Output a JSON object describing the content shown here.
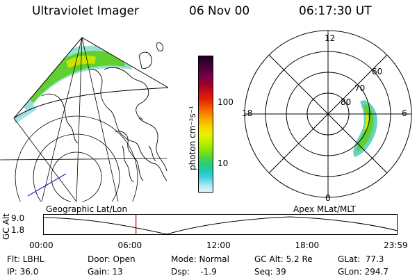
{
  "header": {
    "title": "Ultraviolet Imager",
    "date": "06 Nov 00",
    "time": "06:17:30 UT"
  },
  "colorbar": {
    "label": "photon cm⁻²s⁻¹",
    "ticks": [
      "100",
      "10"
    ],
    "colors": [
      "#1a0022",
      "#3a0033",
      "#5a0040",
      "#7a0048",
      "#a0002a",
      "#c81018",
      "#e02000",
      "#f05000",
      "#f88000",
      "#f8b000",
      "#f8d800",
      "#e8f000",
      "#c0f000",
      "#90e800",
      "#58d830",
      "#28d070",
      "#20c8b0",
      "#40d0e0",
      "#a0e8f0",
      "#e8f4f8"
    ]
  },
  "polar": {
    "labels": {
      "top": "12",
      "right": "6",
      "bottom": "0",
      "left": "18",
      "lat60": "60",
      "lat70": "70",
      "lat80": "80"
    }
  },
  "timeline": {
    "y_title": "GC Alt",
    "y_top": "9.0",
    "y_bottom": "1.8",
    "left_label": "Geographic Lat/Lon",
    "right_label": "Apex MLat/MLT",
    "x_ticks": [
      "00:00",
      "06:00",
      "12:00",
      "18:00",
      "23:59"
    ],
    "current_time_hours": 6.29,
    "line_color": "#c00000"
  },
  "info": {
    "row1": [
      "Flt: LBHL",
      "Door: Open",
      "Mode: Normal",
      "GC Alt: 5.2 Re",
      "GLat:  77.3"
    ],
    "row2": [
      "IP: 36.0",
      "Gain: 13",
      "Dsp:    -1.9",
      "Seq: 39",
      "GLon: 294.7"
    ]
  },
  "colors": {
    "aurora_core": "#60d030",
    "aurora_edge": "#40c8b0",
    "aurora_peak": "#d8e800"
  }
}
